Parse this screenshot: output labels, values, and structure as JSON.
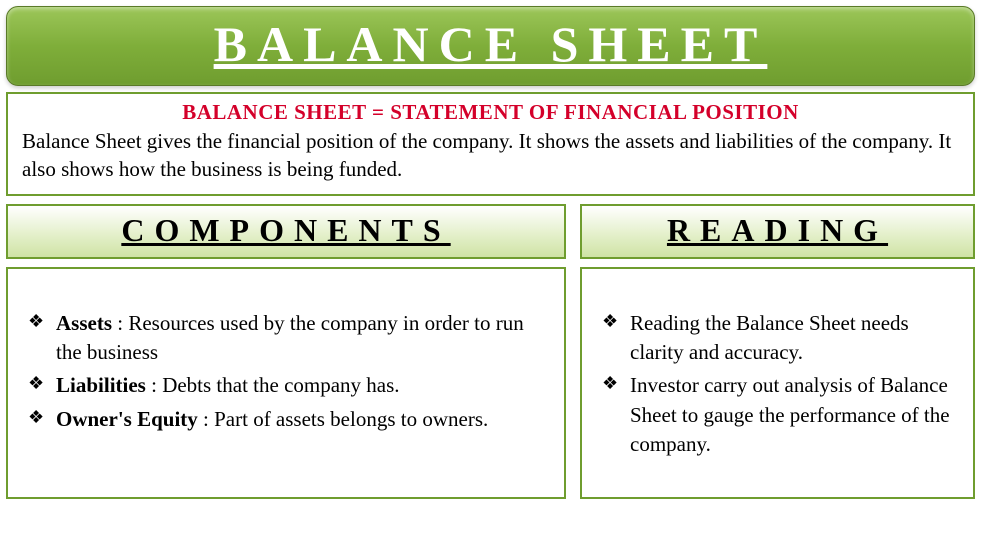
{
  "title": "BALANCE SHEET",
  "intro": {
    "heading": "BALANCE SHEET = STATEMENT OF FINANCIAL POSITION",
    "body": "Balance Sheet gives the financial position of the company. It shows the assets and liabilities of the company. It also shows how the business is being funded."
  },
  "columns": {
    "left": {
      "header": "COMPONENTS",
      "items": [
        {
          "term": "Assets",
          "desc": " : Resources used by the company in order to run the business"
        },
        {
          "term": "Liabilities",
          "desc": " : Debts that the company has."
        },
        {
          "term": "Owner's Equity",
          "desc": " : Part of assets belongs to owners."
        }
      ]
    },
    "right": {
      "header": "READING",
      "items": [
        {
          "term": "",
          "desc": "Reading the Balance Sheet needs clarity and accuracy."
        },
        {
          "term": "",
          "desc": "Investor carry out analysis of Balance Sheet to gauge the performance of the company."
        }
      ]
    }
  },
  "styling": {
    "title_banner_gradient": [
      "#9cc659",
      "#7fae3a",
      "#6f9d2f"
    ],
    "title_text_color": "#ffffff",
    "title_fontsize": 50,
    "title_letter_spacing": 10,
    "border_color": "#6f9d2f",
    "intro_heading_color": "#d4002a",
    "intro_heading_fontsize": 21,
    "body_text_color": "#000000",
    "body_fontsize": 21,
    "section_header_gradient": [
      "#ffffff",
      "#e2efc7",
      "#cfe3a5"
    ],
    "section_header_fontsize": 32,
    "section_header_letter_spacing": 10,
    "bullet_glyph": "❖",
    "background_color": "#ffffff",
    "font_family": "Georgia, serif",
    "layout": {
      "left_col_width": 560,
      "gap": 14
    }
  }
}
